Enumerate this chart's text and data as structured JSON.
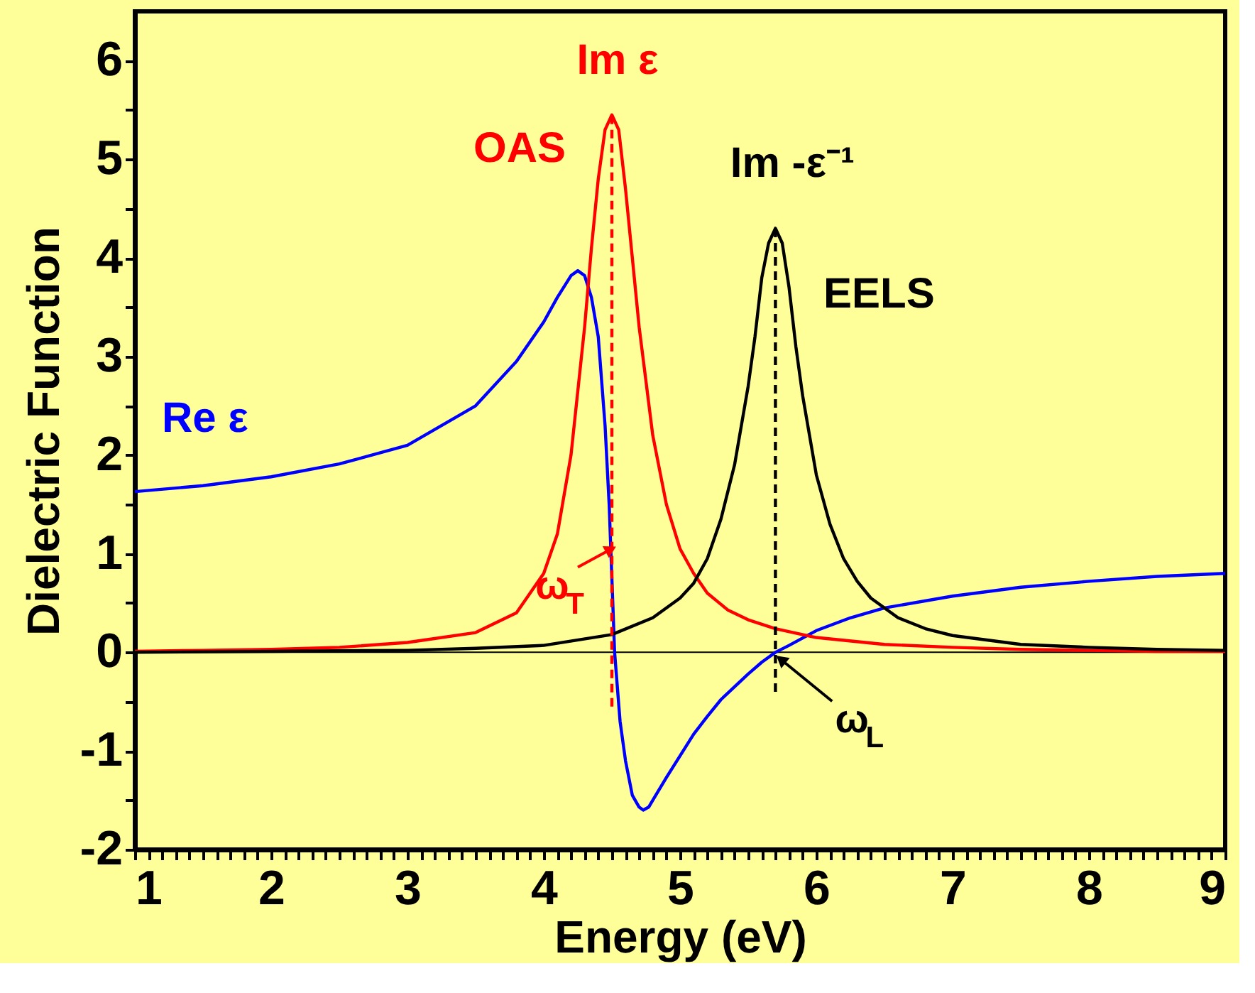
{
  "chart_data": {
    "type": "line",
    "xlabel": "Energy (eV)",
    "ylabel": "Dielectric Function",
    "xlim": [
      1,
      9
    ],
    "ylim": [
      -2,
      6.5
    ],
    "xticks": [
      1,
      {
        "value": 1.1,
        "label": null
      },
      {
        "value": 1.2,
        "label": null
      },
      {
        "value": 1.3,
        "label": null
      },
      {
        "value": 1.4,
        "label": null
      },
      {
        "value": 1.5,
        "label": null
      },
      {
        "value": 1.6,
        "label": null
      },
      {
        "value": 1.7,
        "label": null
      },
      {
        "value": 1.8,
        "label": null
      },
      {
        "value": 1.9,
        "label": null
      },
      2,
      {
        "value": 2.1,
        "label": null
      },
      {
        "value": 2.2,
        "label": null
      },
      {
        "value": 2.3,
        "label": null
      },
      {
        "value": 2.4,
        "label": null
      },
      {
        "value": 2.5,
        "label": null
      },
      {
        "value": 2.6,
        "label": null
      },
      {
        "value": 2.7,
        "label": null
      },
      {
        "value": 2.8,
        "label": null
      },
      {
        "value": 2.9,
        "label": null
      },
      3,
      {
        "value": 3.1,
        "label": null
      },
      {
        "value": 3.2,
        "label": null
      },
      {
        "value": 3.3,
        "label": null
      },
      {
        "value": 3.4,
        "label": null
      },
      {
        "value": 3.5,
        "label": null
      },
      {
        "value": 3.6,
        "label": null
      },
      {
        "value": 3.7,
        "label": null
      },
      {
        "value": 3.8,
        "label": null
      },
      {
        "value": 3.9,
        "label": null
      },
      4,
      {
        "value": 4.1,
        "label": null
      },
      {
        "value": 4.2,
        "label": null
      },
      {
        "value": 4.3,
        "label": null
      },
      {
        "value": 4.4,
        "label": null
      },
      {
        "value": 4.5,
        "label": null
      },
      {
        "value": 4.6,
        "label": null
      },
      {
        "value": 4.7,
        "label": null
      },
      {
        "value": 4.8,
        "label": null
      },
      {
        "value": 4.9,
        "label": null
      },
      5,
      {
        "value": 5.1,
        "label": null
      },
      {
        "value": 5.2,
        "label": null
      },
      {
        "value": 5.3,
        "label": null
      },
      {
        "value": 5.4,
        "label": null
      },
      {
        "value": 5.5,
        "label": null
      },
      {
        "value": 5.6,
        "label": null
      },
      {
        "value": 5.7,
        "label": null
      },
      {
        "value": 5.8,
        "label": null
      },
      {
        "value": 5.9,
        "label": null
      },
      6,
      {
        "value": 6.1,
        "label": null
      },
      {
        "value": 6.2,
        "label": null
      },
      {
        "value": 6.3,
        "label": null
      },
      {
        "value": 6.4,
        "label": null
      },
      {
        "value": 6.5,
        "label": null
      },
      {
        "value": 6.6,
        "label": null
      },
      {
        "value": 6.7,
        "label": null
      },
      {
        "value": 6.8,
        "label": null
      },
      {
        "value": 6.9,
        "label": null
      },
      7,
      {
        "value": 7.1,
        "label": null
      },
      {
        "value": 7.2,
        "label": null
      },
      {
        "value": 7.3,
        "label": null
      },
      {
        "value": 7.4,
        "label": null
      },
      {
        "value": 7.5,
        "label": null
      },
      {
        "value": 7.6,
        "label": null
      },
      {
        "value": 7.7,
        "label": null
      },
      {
        "value": 7.8,
        "label": null
      },
      {
        "value": 7.9,
        "label": null
      },
      8,
      {
        "value": 8.1,
        "label": null
      },
      {
        "value": 8.2,
        "label": null
      },
      {
        "value": 8.3,
        "label": null
      },
      {
        "value": 8.4,
        "label": null
      },
      {
        "value": 8.5,
        "label": null
      },
      {
        "value": 8.6,
        "label": null
      },
      {
        "value": 8.7,
        "label": null
      },
      {
        "value": 8.8,
        "label": null
      },
      {
        "value": 8.9,
        "label": null
      },
      9
    ],
    "yticks": [
      -2,
      {
        "value": -1.5,
        "label": null
      },
      -1,
      {
        "value": -0.5,
        "label": null
      },
      0,
      {
        "value": 0.5,
        "label": null
      },
      1,
      {
        "value": 1.5,
        "label": null
      },
      2,
      {
        "value": 2.5,
        "label": null
      },
      3,
      {
        "value": 3.5,
        "label": null
      },
      4,
      {
        "value": 4.5,
        "label": null
      },
      5,
      {
        "value": 5.5,
        "label": null
      },
      6
    ],
    "grid": false,
    "series": [
      {
        "name": "Re ε",
        "color": "#0000ff",
        "x": [
          1,
          1.5,
          2,
          2.5,
          3,
          3.5,
          3.8,
          4.0,
          4.1,
          4.2,
          4.25,
          4.3,
          4.35,
          4.4,
          4.45,
          4.48,
          4.52,
          4.56,
          4.6,
          4.65,
          4.7,
          4.73,
          4.77,
          4.8,
          4.9,
          5.0,
          5.1,
          5.2,
          5.3,
          5.4,
          5.5,
          5.6,
          5.7,
          5.8,
          6.0,
          6.25,
          6.5,
          7,
          7.5,
          8,
          8.5,
          9
        ],
        "values": [
          1.63,
          1.69,
          1.78,
          1.91,
          2.1,
          2.5,
          2.95,
          3.35,
          3.6,
          3.82,
          3.87,
          3.82,
          3.6,
          3.2,
          2.3,
          1.5,
          0.0,
          -0.7,
          -1.1,
          -1.45,
          -1.57,
          -1.6,
          -1.57,
          -1.5,
          -1.27,
          -1.05,
          -0.83,
          -0.65,
          -0.48,
          -0.35,
          -0.22,
          -0.1,
          0.0,
          0.07,
          0.22,
          0.35,
          0.45,
          0.57,
          0.66,
          0.72,
          0.77,
          0.8
        ]
      },
      {
        "name": "Im ε",
        "color": "#ff0000",
        "x": [
          1,
          1.5,
          2,
          2.5,
          3,
          3.5,
          3.8,
          4.0,
          4.1,
          4.2,
          4.3,
          4.35,
          4.4,
          4.45,
          4.5,
          4.55,
          4.6,
          4.65,
          4.7,
          4.8,
          4.9,
          5.0,
          5.1,
          5.2,
          5.35,
          5.5,
          5.7,
          6.0,
          6.5,
          7,
          7.5,
          8,
          8.5,
          9
        ],
        "values": [
          0.01,
          0.02,
          0.03,
          0.05,
          0.1,
          0.2,
          0.4,
          0.8,
          1.2,
          2.0,
          3.3,
          4.1,
          4.8,
          5.3,
          5.45,
          5.3,
          4.7,
          4.0,
          3.3,
          2.2,
          1.5,
          1.05,
          0.8,
          0.6,
          0.43,
          0.33,
          0.24,
          0.15,
          0.08,
          0.05,
          0.03,
          0.02,
          0.01,
          0.01
        ]
      },
      {
        "name": "Im -ε⁻¹",
        "color": "#000000",
        "x": [
          1,
          2,
          3,
          3.5,
          4,
          4.5,
          4.8,
          5.0,
          5.1,
          5.2,
          5.3,
          5.4,
          5.5,
          5.55,
          5.6,
          5.65,
          5.7,
          5.75,
          5.8,
          5.85,
          5.9,
          6.0,
          6.1,
          6.2,
          6.3,
          6.4,
          6.6,
          6.8,
          7,
          7.5,
          8,
          8.5,
          9
        ],
        "values": [
          0.0,
          0.01,
          0.02,
          0.04,
          0.07,
          0.18,
          0.35,
          0.55,
          0.7,
          0.95,
          1.35,
          1.9,
          2.7,
          3.2,
          3.8,
          4.15,
          4.3,
          4.15,
          3.7,
          3.1,
          2.6,
          1.8,
          1.3,
          0.95,
          0.72,
          0.55,
          0.35,
          0.24,
          0.17,
          0.08,
          0.05,
          0.03,
          0.02
        ]
      },
      {
        "type": "line",
        "line_style": "dashed",
        "color": "#ff0000",
        "x": [
          4.5,
          4.5
        ],
        "values": [
          -0.55,
          5.45
        ]
      },
      {
        "type": "line",
        "line_style": "dashed",
        "color": "#000000",
        "x": [
          5.7,
          5.7
        ],
        "values": [
          -0.4,
          4.3
        ]
      }
    ],
    "ref_lines": [
      {
        "axis": "y",
        "value": 0,
        "color": "#000000"
      }
    ],
    "annotations": [
      {
        "text": "OAS",
        "x": 4.5,
        "y": 5.45
      },
      {
        "text": "EELS",
        "x": 5.7,
        "y": 4.3
      },
      {
        "text": "ω$_{T}$",
        "x": 4.5,
        "y": 1.05
      },
      {
        "text": "ω$_{L}$",
        "x": 5.72,
        "y": -0.05
      }
    ]
  }
}
